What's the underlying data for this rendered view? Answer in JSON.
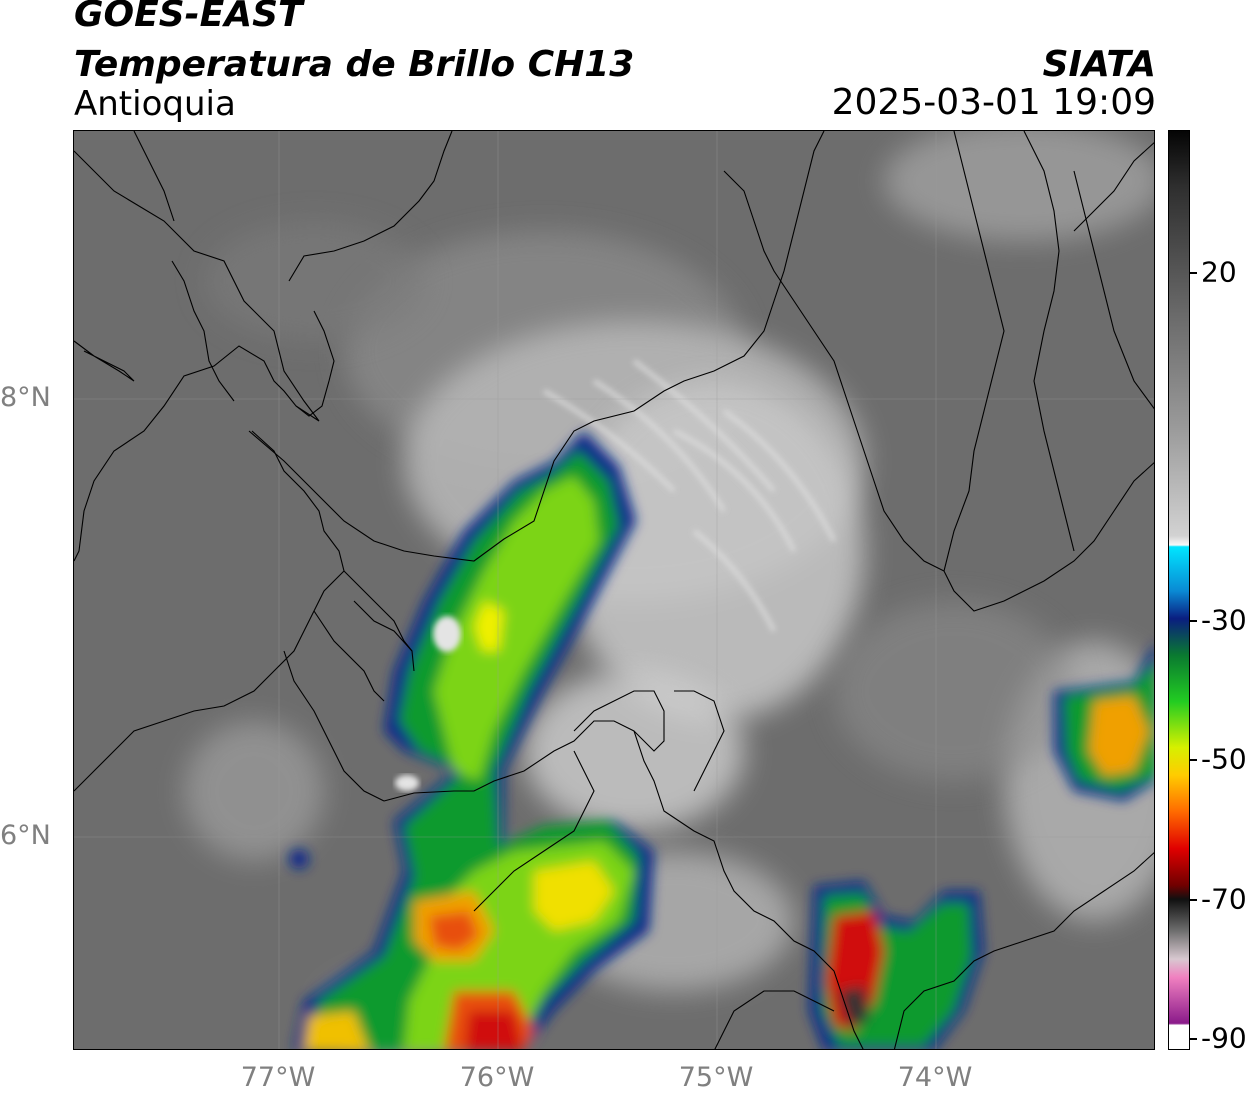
{
  "header": {
    "satellite": "GOES-EAST",
    "product": "Temperatura de Brillo CH13",
    "region": "Antioquia",
    "agency": "SIATA",
    "datetime": "2025-03-01 19:09"
  },
  "map": {
    "latitude_labels": [
      {
        "label": "8°N",
        "lat": 8
      },
      {
        "label": "6°N",
        "lat": 6
      }
    ],
    "longitude_labels": [
      {
        "label": "77°W",
        "lon": -77
      },
      {
        "label": "76°W",
        "lon": -76
      },
      {
        "label": "75°W",
        "lon": -75
      },
      {
        "label": "74°W",
        "lon": -74
      }
    ],
    "lon_range": [
      -77.94,
      -73.0
    ],
    "lat_range": [
      5.0,
      9.2
    ],
    "gridlines": true,
    "colors": {
      "background_cloud_free": "#6e6e6e",
      "borders": "#000000"
    }
  },
  "colorbar": {
    "ticks": [
      {
        "label": "20",
        "value": 20
      },
      {
        "label": "-30",
        "value": -30
      },
      {
        "label": "-50",
        "value": -50
      },
      {
        "label": "-70",
        "value": -70
      },
      {
        "label": "-90",
        "value": -90
      }
    ],
    "range": [
      -92,
      38
    ],
    "units_shown": false
  }
}
